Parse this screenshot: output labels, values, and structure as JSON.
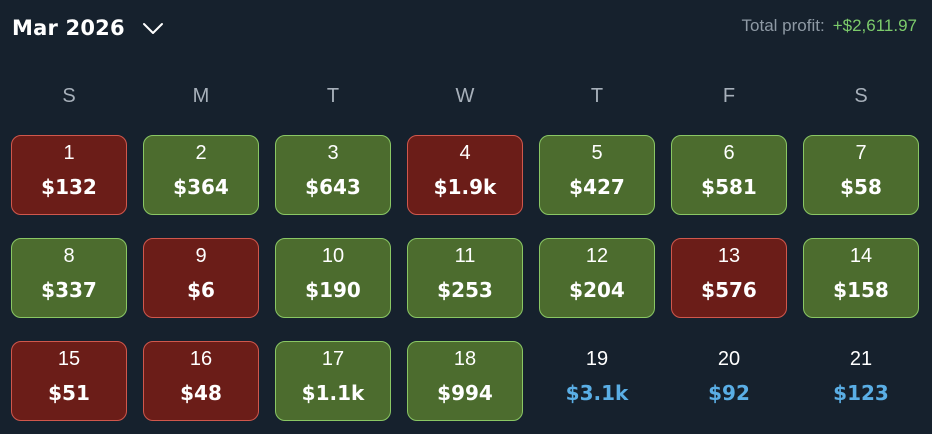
{
  "header": {
    "month_label": "Mar 2026",
    "chevron_icon": "chevron-down-icon",
    "total_label": "Total profit:",
    "total_value": "+$2,611.97"
  },
  "colors": {
    "background": "#16212d",
    "win_fill": "#4c6c2e",
    "win_border": "#8ac764",
    "loss_fill": "#6b1d18",
    "loss_border": "#d0574c",
    "future_amount": "#5aaee5",
    "total_positive": "#7ccb6b"
  },
  "weekdays": [
    "S",
    "M",
    "T",
    "W",
    "T",
    "F",
    "S"
  ],
  "weeks": [
    [
      {
        "day": "1",
        "amount": "$132",
        "status": "loss"
      },
      {
        "day": "2",
        "amount": "$364",
        "status": "win"
      },
      {
        "day": "3",
        "amount": "$643",
        "status": "win"
      },
      {
        "day": "4",
        "amount": "$1.9k",
        "status": "loss"
      },
      {
        "day": "5",
        "amount": "$427",
        "status": "win"
      },
      {
        "day": "6",
        "amount": "$581",
        "status": "win"
      },
      {
        "day": "7",
        "amount": "$58",
        "status": "win"
      }
    ],
    [
      {
        "day": "8",
        "amount": "$337",
        "status": "win"
      },
      {
        "day": "9",
        "amount": "$6",
        "status": "loss"
      },
      {
        "day": "10",
        "amount": "$190",
        "status": "win"
      },
      {
        "day": "11",
        "amount": "$253",
        "status": "win"
      },
      {
        "day": "12",
        "amount": "$204",
        "status": "win"
      },
      {
        "day": "13",
        "amount": "$576",
        "status": "loss"
      },
      {
        "day": "14",
        "amount": "$158",
        "status": "win"
      }
    ],
    [
      {
        "day": "15",
        "amount": "$51",
        "status": "loss"
      },
      {
        "day": "16",
        "amount": "$48",
        "status": "loss"
      },
      {
        "day": "17",
        "amount": "$1.1k",
        "status": "win"
      },
      {
        "day": "18",
        "amount": "$994",
        "status": "win"
      },
      {
        "day": "19",
        "amount": "$3.1k",
        "status": "future"
      },
      {
        "day": "20",
        "amount": "$92",
        "status": "future"
      },
      {
        "day": "21",
        "amount": "$123",
        "status": "future"
      }
    ]
  ]
}
